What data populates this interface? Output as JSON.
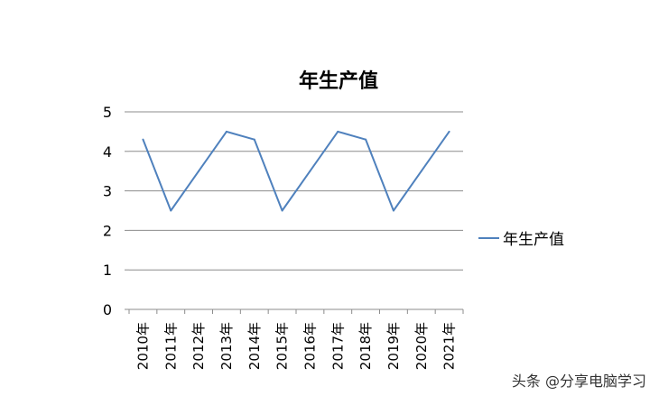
{
  "chart_data": {
    "type": "line",
    "title": "年生产值",
    "categories": [
      "2010年",
      "2011年",
      "2012年",
      "2013年",
      "2014年",
      "2015年",
      "2016年",
      "2017年",
      "2018年",
      "2019年",
      "2020年",
      "2021年"
    ],
    "series": [
      {
        "name": "年生产值",
        "values": [
          4.3,
          2.5,
          3.5,
          4.5,
          4.3,
          2.5,
          3.5,
          4.5,
          4.3,
          2.5,
          3.5,
          4.5
        ]
      }
    ],
    "yticks": [
      "0",
      "1",
      "2",
      "3",
      "4",
      "5"
    ],
    "ylim": [
      0,
      5
    ],
    "grid": true,
    "legend_position": "right",
    "line_color": "#4f81bd",
    "grid_color": "#8c8c8c"
  },
  "watermark": "头条 @分享电脑学习"
}
